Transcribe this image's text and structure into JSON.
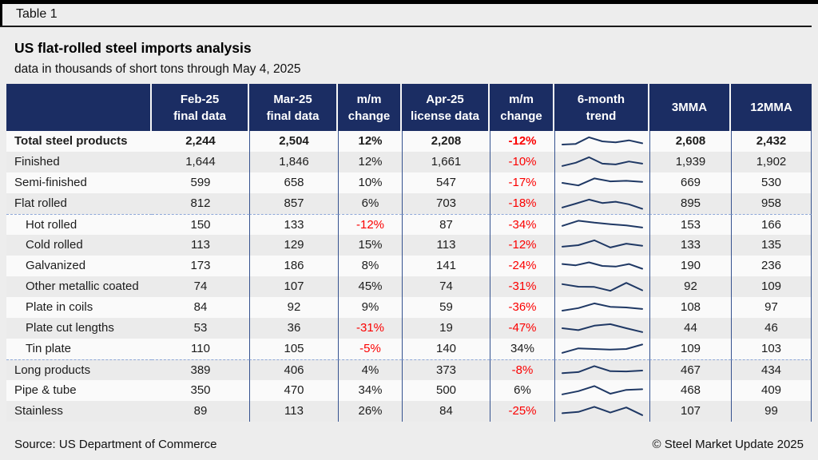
{
  "page": {
    "tag": "Table 1",
    "source": "Source: US Department of Commerce",
    "copyright": "© Steel Market Update 2025"
  },
  "colors": {
    "header_bg": "#1b2d63",
    "negative": "#fb0000",
    "sparkline": "#1f3864",
    "grid_line": "#35528f",
    "dashed_line": "#8fa8d8"
  },
  "chart_data": {
    "type": "table",
    "title": "US flat-rolled steel imports analysis",
    "subtitle": "data in thousands of short tons through May 4, 2025",
    "columns": [
      {
        "line1": "",
        "line2": ""
      },
      {
        "line1": "Feb-25",
        "line2": "final data"
      },
      {
        "line1": "Mar-25",
        "line2": "final data"
      },
      {
        "line1": "m/m",
        "line2": "change"
      },
      {
        "line1": "Apr-25",
        "line2": "license data"
      },
      {
        "line1": "m/m",
        "line2": "change"
      },
      {
        "line1": "6-month",
        "line2": "trend"
      },
      {
        "line1": "3MMA",
        "line2": ""
      },
      {
        "line1": "12MMA",
        "line2": ""
      }
    ],
    "rows": [
      {
        "label": "Total steel products",
        "bold": true,
        "indent": false,
        "group_start": false,
        "feb": "2,244",
        "mar": "2,504",
        "mm1": "12%",
        "apr": "2,208",
        "mm2": "-12%",
        "trend": [
          0.25,
          0.3,
          0.82,
          0.5,
          0.42,
          0.58,
          0.35
        ],
        "mma3": "2,608",
        "mma12": "2,432"
      },
      {
        "label": "Finished",
        "bold": false,
        "indent": false,
        "group_start": false,
        "feb": "1,644",
        "mar": "1,846",
        "mm1": "12%",
        "apr": "1,661",
        "mm2": "-10%",
        "trend": [
          0.2,
          0.45,
          0.88,
          0.38,
          0.32,
          0.55,
          0.38
        ],
        "mma3": "1,939",
        "mma12": "1,902"
      },
      {
        "label": "Semi-finished",
        "bold": false,
        "indent": false,
        "group_start": false,
        "feb": "599",
        "mar": "658",
        "mm1": "10%",
        "apr": "547",
        "mm2": "-17%",
        "trend": [
          0.5,
          0.3,
          0.85,
          0.62,
          0.66,
          0.58
        ],
        "mma3": "669",
        "mma12": "530"
      },
      {
        "label": "Flat rolled",
        "bold": false,
        "indent": false,
        "group_start": false,
        "feb": "812",
        "mar": "857",
        "mm1": "6%",
        "apr": "703",
        "mm2": "-18%",
        "trend": [
          0.2,
          0.5,
          0.82,
          0.55,
          0.65,
          0.45,
          0.1
        ],
        "mma3": "895",
        "mma12": "958"
      },
      {
        "label": "Hot rolled",
        "bold": false,
        "indent": true,
        "group_start": true,
        "feb": "150",
        "mar": "133",
        "mm1": "-12%",
        "apr": "87",
        "mm2": "-34%",
        "trend": [
          0.45,
          0.85,
          0.7,
          0.58,
          0.48,
          0.32
        ],
        "mma3": "153",
        "mma12": "166"
      },
      {
        "label": "Cold rolled",
        "bold": false,
        "indent": true,
        "group_start": false,
        "feb": "113",
        "mar": "129",
        "mm1": "15%",
        "apr": "113",
        "mm2": "-12%",
        "trend": [
          0.38,
          0.5,
          0.88,
          0.32,
          0.62,
          0.45
        ],
        "mma3": "133",
        "mma12": "135"
      },
      {
        "label": "Galvanized",
        "bold": false,
        "indent": true,
        "group_start": false,
        "feb": "173",
        "mar": "186",
        "mm1": "8%",
        "apr": "141",
        "mm2": "-24%",
        "trend": [
          0.65,
          0.55,
          0.78,
          0.5,
          0.45,
          0.65,
          0.28
        ],
        "mma3": "190",
        "mma12": "236"
      },
      {
        "label": "Other metallic coated",
        "bold": false,
        "indent": true,
        "group_start": false,
        "feb": "74",
        "mar": "107",
        "mm1": "45%",
        "apr": "74",
        "mm2": "-31%",
        "trend": [
          0.7,
          0.5,
          0.48,
          0.18,
          0.8,
          0.22
        ],
        "mma3": "92",
        "mma12": "109"
      },
      {
        "label": "Plate in coils",
        "bold": false,
        "indent": true,
        "group_start": false,
        "feb": "84",
        "mar": "92",
        "mm1": "9%",
        "apr": "59",
        "mm2": "-36%",
        "trend": [
          0.25,
          0.45,
          0.82,
          0.55,
          0.5,
          0.38
        ],
        "mma3": "108",
        "mma12": "97"
      },
      {
        "label": "Plate cut lengths",
        "bold": false,
        "indent": true,
        "group_start": false,
        "feb": "53",
        "mar": "36",
        "mm1": "-31%",
        "apr": "19",
        "mm2": "-47%",
        "trend": [
          0.5,
          0.35,
          0.7,
          0.82,
          0.5,
          0.2
        ],
        "mma3": "44",
        "mma12": "46"
      },
      {
        "label": "Tin plate",
        "bold": false,
        "indent": true,
        "group_start": false,
        "feb": "110",
        "mar": "105",
        "mm1": "-5%",
        "apr": "140",
        "mm2": "34%",
        "trend": [
          0.2,
          0.55,
          0.5,
          0.45,
          0.5,
          0.85
        ],
        "mma3": "109",
        "mma12": "103"
      },
      {
        "label": "Long products",
        "bold": false,
        "indent": false,
        "group_start": true,
        "feb": "389",
        "mar": "406",
        "mm1": "4%",
        "apr": "373",
        "mm2": "-8%",
        "trend": [
          0.3,
          0.38,
          0.85,
          0.45,
          0.43,
          0.5
        ],
        "mma3": "467",
        "mma12": "434"
      },
      {
        "label": "Pipe & tube",
        "bold": false,
        "indent": false,
        "group_start": false,
        "feb": "350",
        "mar": "470",
        "mm1": "34%",
        "apr": "500",
        "mm2": "6%",
        "trend": [
          0.2,
          0.45,
          0.85,
          0.25,
          0.55,
          0.6
        ],
        "mma3": "468",
        "mma12": "409"
      },
      {
        "label": "Stainless",
        "bold": false,
        "indent": false,
        "group_start": false,
        "feb": "89",
        "mar": "113",
        "mm1": "26%",
        "apr": "84",
        "mm2": "-25%",
        "trend": [
          0.35,
          0.45,
          0.85,
          0.4,
          0.8,
          0.2
        ],
        "mma3": "107",
        "mma12": "99"
      }
    ]
  }
}
